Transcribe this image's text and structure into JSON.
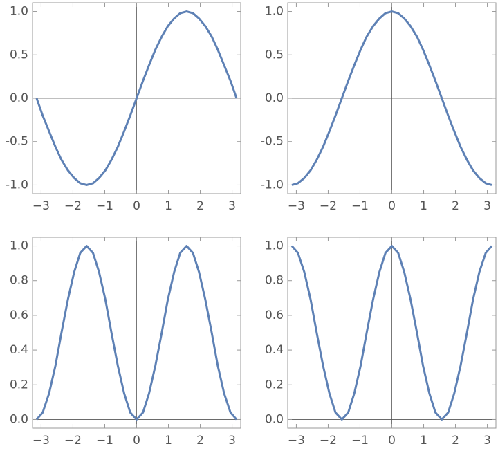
{
  "chart_data": [
    {
      "type": "line",
      "color": "#5e81b5",
      "x": [
        -3.14,
        -2.95,
        -2.75,
        -2.55,
        -2.36,
        -2.16,
        -1.96,
        -1.77,
        -1.57,
        -1.37,
        -1.18,
        -0.98,
        -0.79,
        -0.59,
        -0.39,
        -0.2,
        0,
        0.2,
        0.39,
        0.59,
        0.79,
        0.98,
        1.18,
        1.37,
        1.57,
        1.77,
        1.96,
        2.16,
        2.36,
        2.55,
        2.75,
        2.95,
        3.14
      ],
      "values": [
        0,
        -0.2,
        -0.38,
        -0.56,
        -0.71,
        -0.83,
        -0.92,
        -0.98,
        -1,
        -0.98,
        -0.92,
        -0.83,
        -0.71,
        -0.56,
        -0.38,
        -0.2,
        0,
        0.2,
        0.38,
        0.56,
        0.71,
        0.83,
        0.92,
        0.98,
        1,
        0.98,
        0.92,
        0.83,
        0.71,
        0.56,
        0.38,
        0.2,
        0
      ],
      "xlim": [
        -3.27,
        3.27
      ],
      "ylim": [
        -1.1,
        1.1
      ],
      "xticks": [
        {
          "value": -3,
          "label": "−3"
        },
        {
          "value": -2,
          "label": "−2"
        },
        {
          "value": -1,
          "label": "−1"
        },
        0,
        1,
        2,
        3
      ],
      "yticks": [
        {
          "value": -1,
          "label": "-1.0"
        },
        -0.5,
        {
          "value": 0,
          "label": "0.0"
        },
        0.5,
        {
          "value": 1,
          "label": "1.0"
        }
      ]
    },
    {
      "type": "line",
      "color": "#5e81b5",
      "x": [
        -3.14,
        -2.95,
        -2.75,
        -2.55,
        -2.36,
        -2.16,
        -1.96,
        -1.77,
        -1.57,
        -1.37,
        -1.18,
        -0.98,
        -0.79,
        -0.59,
        -0.39,
        -0.2,
        0,
        0.2,
        0.39,
        0.59,
        0.79,
        0.98,
        1.18,
        1.37,
        1.57,
        1.77,
        1.96,
        2.16,
        2.36,
        2.55,
        2.75,
        2.95,
        3.14
      ],
      "values": [
        -1,
        -0.98,
        -0.92,
        -0.83,
        -0.71,
        -0.56,
        -0.38,
        -0.2,
        0,
        0.2,
        0.38,
        0.56,
        0.71,
        0.83,
        0.92,
        0.98,
        1,
        0.98,
        0.92,
        0.83,
        0.71,
        0.56,
        0.38,
        0.2,
        0,
        -0.2,
        -0.38,
        -0.56,
        -0.71,
        -0.83,
        -0.92,
        -0.98,
        -1
      ],
      "xlim": [
        -3.27,
        3.27
      ],
      "ylim": [
        -1.1,
        1.1
      ],
      "xticks": [
        {
          "value": -3,
          "label": "−3"
        },
        {
          "value": -2,
          "label": "−2"
        },
        {
          "value": -1,
          "label": "−1"
        },
        0,
        1,
        2,
        3
      ],
      "yticks": [
        {
          "value": -1,
          "label": "-1.0"
        },
        -0.5,
        {
          "value": 0,
          "label": "0.0"
        },
        0.5,
        {
          "value": 1,
          "label": "1.0"
        }
      ]
    },
    {
      "type": "line",
      "color": "#5e81b5",
      "x": [
        -3.14,
        -2.95,
        -2.75,
        -2.55,
        -2.36,
        -2.16,
        -1.96,
        -1.77,
        -1.57,
        -1.37,
        -1.18,
        -0.98,
        -0.79,
        -0.59,
        -0.39,
        -0.2,
        0,
        0.2,
        0.39,
        0.59,
        0.79,
        0.98,
        1.18,
        1.37,
        1.57,
        1.77,
        1.96,
        2.16,
        2.36,
        2.55,
        2.75,
        2.95,
        3.14
      ],
      "values": [
        0,
        0.04,
        0.15,
        0.31,
        0.5,
        0.69,
        0.85,
        0.96,
        1,
        0.96,
        0.85,
        0.69,
        0.5,
        0.31,
        0.15,
        0.04,
        0,
        0.04,
        0.15,
        0.31,
        0.5,
        0.69,
        0.85,
        0.96,
        1,
        0.96,
        0.85,
        0.69,
        0.5,
        0.31,
        0.15,
        0.04,
        0
      ],
      "xlim": [
        -3.27,
        3.27
      ],
      "ylim": [
        -0.05,
        1.05
      ],
      "xticks": [
        {
          "value": -3,
          "label": "−3"
        },
        {
          "value": -2,
          "label": "−2"
        },
        {
          "value": -1,
          "label": "−1"
        },
        0,
        1,
        2,
        3
      ],
      "yticks": [
        {
          "value": 0,
          "label": "0.0"
        },
        0.2,
        0.4,
        0.6,
        0.8,
        {
          "value": 1,
          "label": "1.0"
        }
      ]
    },
    {
      "type": "line",
      "color": "#5e81b5",
      "x": [
        -3.14,
        -2.95,
        -2.75,
        -2.55,
        -2.36,
        -2.16,
        -1.96,
        -1.77,
        -1.57,
        -1.37,
        -1.18,
        -0.98,
        -0.79,
        -0.59,
        -0.39,
        -0.2,
        0,
        0.2,
        0.39,
        0.59,
        0.79,
        0.98,
        1.18,
        1.37,
        1.57,
        1.77,
        1.96,
        2.16,
        2.36,
        2.55,
        2.75,
        2.95,
        3.14
      ],
      "values": [
        1,
        0.96,
        0.85,
        0.69,
        0.5,
        0.31,
        0.15,
        0.04,
        0,
        0.04,
        0.15,
        0.31,
        0.5,
        0.69,
        0.85,
        0.96,
        1,
        0.96,
        0.85,
        0.69,
        0.5,
        0.31,
        0.15,
        0.04,
        0,
        0.04,
        0.15,
        0.31,
        0.5,
        0.69,
        0.85,
        0.96,
        1
      ],
      "xlim": [
        -3.27,
        3.27
      ],
      "ylim": [
        -0.05,
        1.05
      ],
      "xticks": [
        {
          "value": -3,
          "label": "−3"
        },
        {
          "value": -2,
          "label": "−2"
        },
        {
          "value": -1,
          "label": "−1"
        },
        0,
        1,
        2,
        3
      ],
      "yticks": [
        {
          "value": 0,
          "label": "0.0"
        },
        0.2,
        0.4,
        0.6,
        0.8,
        {
          "value": 1,
          "label": "1.0"
        }
      ]
    }
  ]
}
